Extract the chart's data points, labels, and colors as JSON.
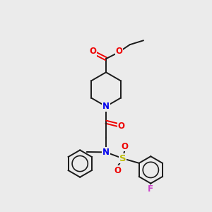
{
  "bg_color": "#ebebeb",
  "bond_color": "#1a1a1a",
  "N_color": "#0000ee",
  "O_color": "#ee0000",
  "S_color": "#bbbb00",
  "F_color": "#cc44cc",
  "lw": 1.4,
  "ring_r": 0.75,
  "xlim": [
    0,
    10
  ],
  "ylim": [
    0,
    10
  ]
}
